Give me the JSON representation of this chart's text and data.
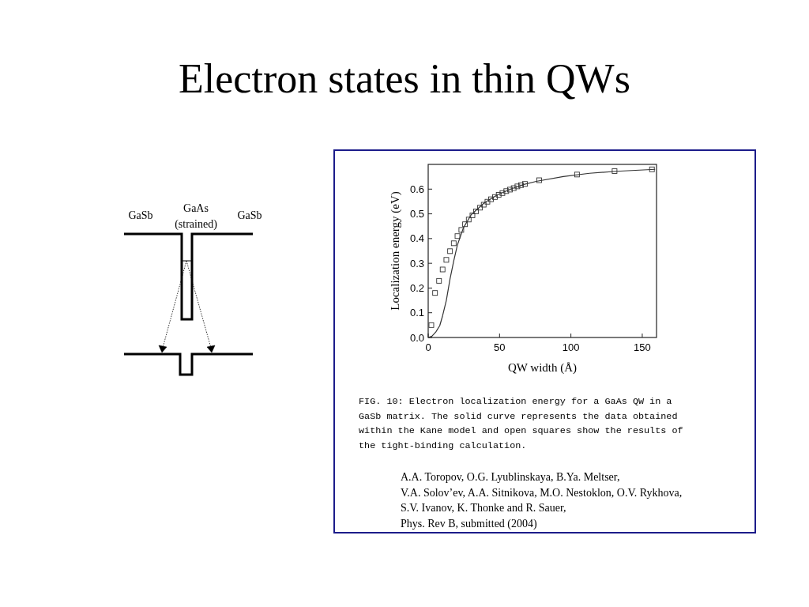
{
  "chart_data": {
    "type": "scatter",
    "title": "Electron states in thin QWs",
    "xlabel": "QW width (Å)",
    "ylabel": "Localization energy (eV)",
    "xlim": [
      0,
      160
    ],
    "xticks": [
      0,
      50,
      100,
      150
    ],
    "ylim": [
      0,
      0.7
    ],
    "yticks": [
      {
        "value": 0,
        "label": "0.0"
      },
      {
        "value": 0.1,
        "label": "0.1"
      },
      {
        "value": 0.2,
        "label": "0.2"
      },
      {
        "value": 0.3,
        "label": "0.3"
      },
      {
        "value": 0.4,
        "label": "0.4"
      },
      {
        "value": 0.5,
        "label": "0.5"
      },
      {
        "value": 0.6,
        "label": "0.6"
      }
    ],
    "grid": false,
    "series": [
      {
        "type": "line",
        "color": "#333333",
        "line_style": "solid",
        "x": [
          0,
          2.6,
          5.3,
          8.1,
          10.1,
          12.7,
          15.3,
          17.9,
          20.5,
          24.7,
          30.2,
          39.4,
          48.6,
          57.8,
          67,
          76.3,
          94.7,
          113,
          131.6,
          159
        ],
        "values": [
          0,
          0.005,
          0.022,
          0.048,
          0.088,
          0.15,
          0.237,
          0.31,
          0.375,
          0.444,
          0.497,
          0.545,
          0.577,
          0.6,
          0.619,
          0.632,
          0.651,
          0.664,
          0.672,
          0.68
        ]
      },
      {
        "color": "#333333",
        "marker": "square",
        "x": [
          2.2,
          4.8,
          7.6,
          10.1,
          12.7,
          15.3,
          17.9,
          20.5,
          23.2,
          25.8,
          28.4,
          31,
          33.5,
          36.3,
          38.9,
          41.5,
          44,
          46.8,
          49.4,
          52,
          54.7,
          57.3,
          59.9,
          62.5,
          65,
          67.8,
          77.8,
          104.3,
          130.6,
          156.8
        ],
        "values": [
          0.05,
          0.18,
          0.229,
          0.275,
          0.314,
          0.349,
          0.381,
          0.41,
          0.435,
          0.458,
          0.477,
          0.494,
          0.51,
          0.525,
          0.537,
          0.549,
          0.559,
          0.568,
          0.577,
          0.584,
          0.592,
          0.598,
          0.604,
          0.611,
          0.616,
          0.621,
          0.636,
          0.659,
          0.673,
          0.68
        ]
      }
    ],
    "annotations": [
      "FIG. 10: Electron localization energy for a GaAs QW in a GaSb matrix. The solid curve represents the data obtained within the Kane model and open squares show the results of the tight-binding calculation.",
      "A.A. Toropov, O.G. Lyublinskaya, B.Ya. Meltser,",
      "V.A. Solov’ev, A.A. Sitnikova, M.O. Nestoklon, O.V. Rykhova,",
      "S.V. Ivanov, K. Thonke and R. Sauer,",
      "Phys. Rev B, submitted (2004)",
      "GaSb",
      "GaAs",
      "(strained)",
      "GaSb"
    ]
  }
}
